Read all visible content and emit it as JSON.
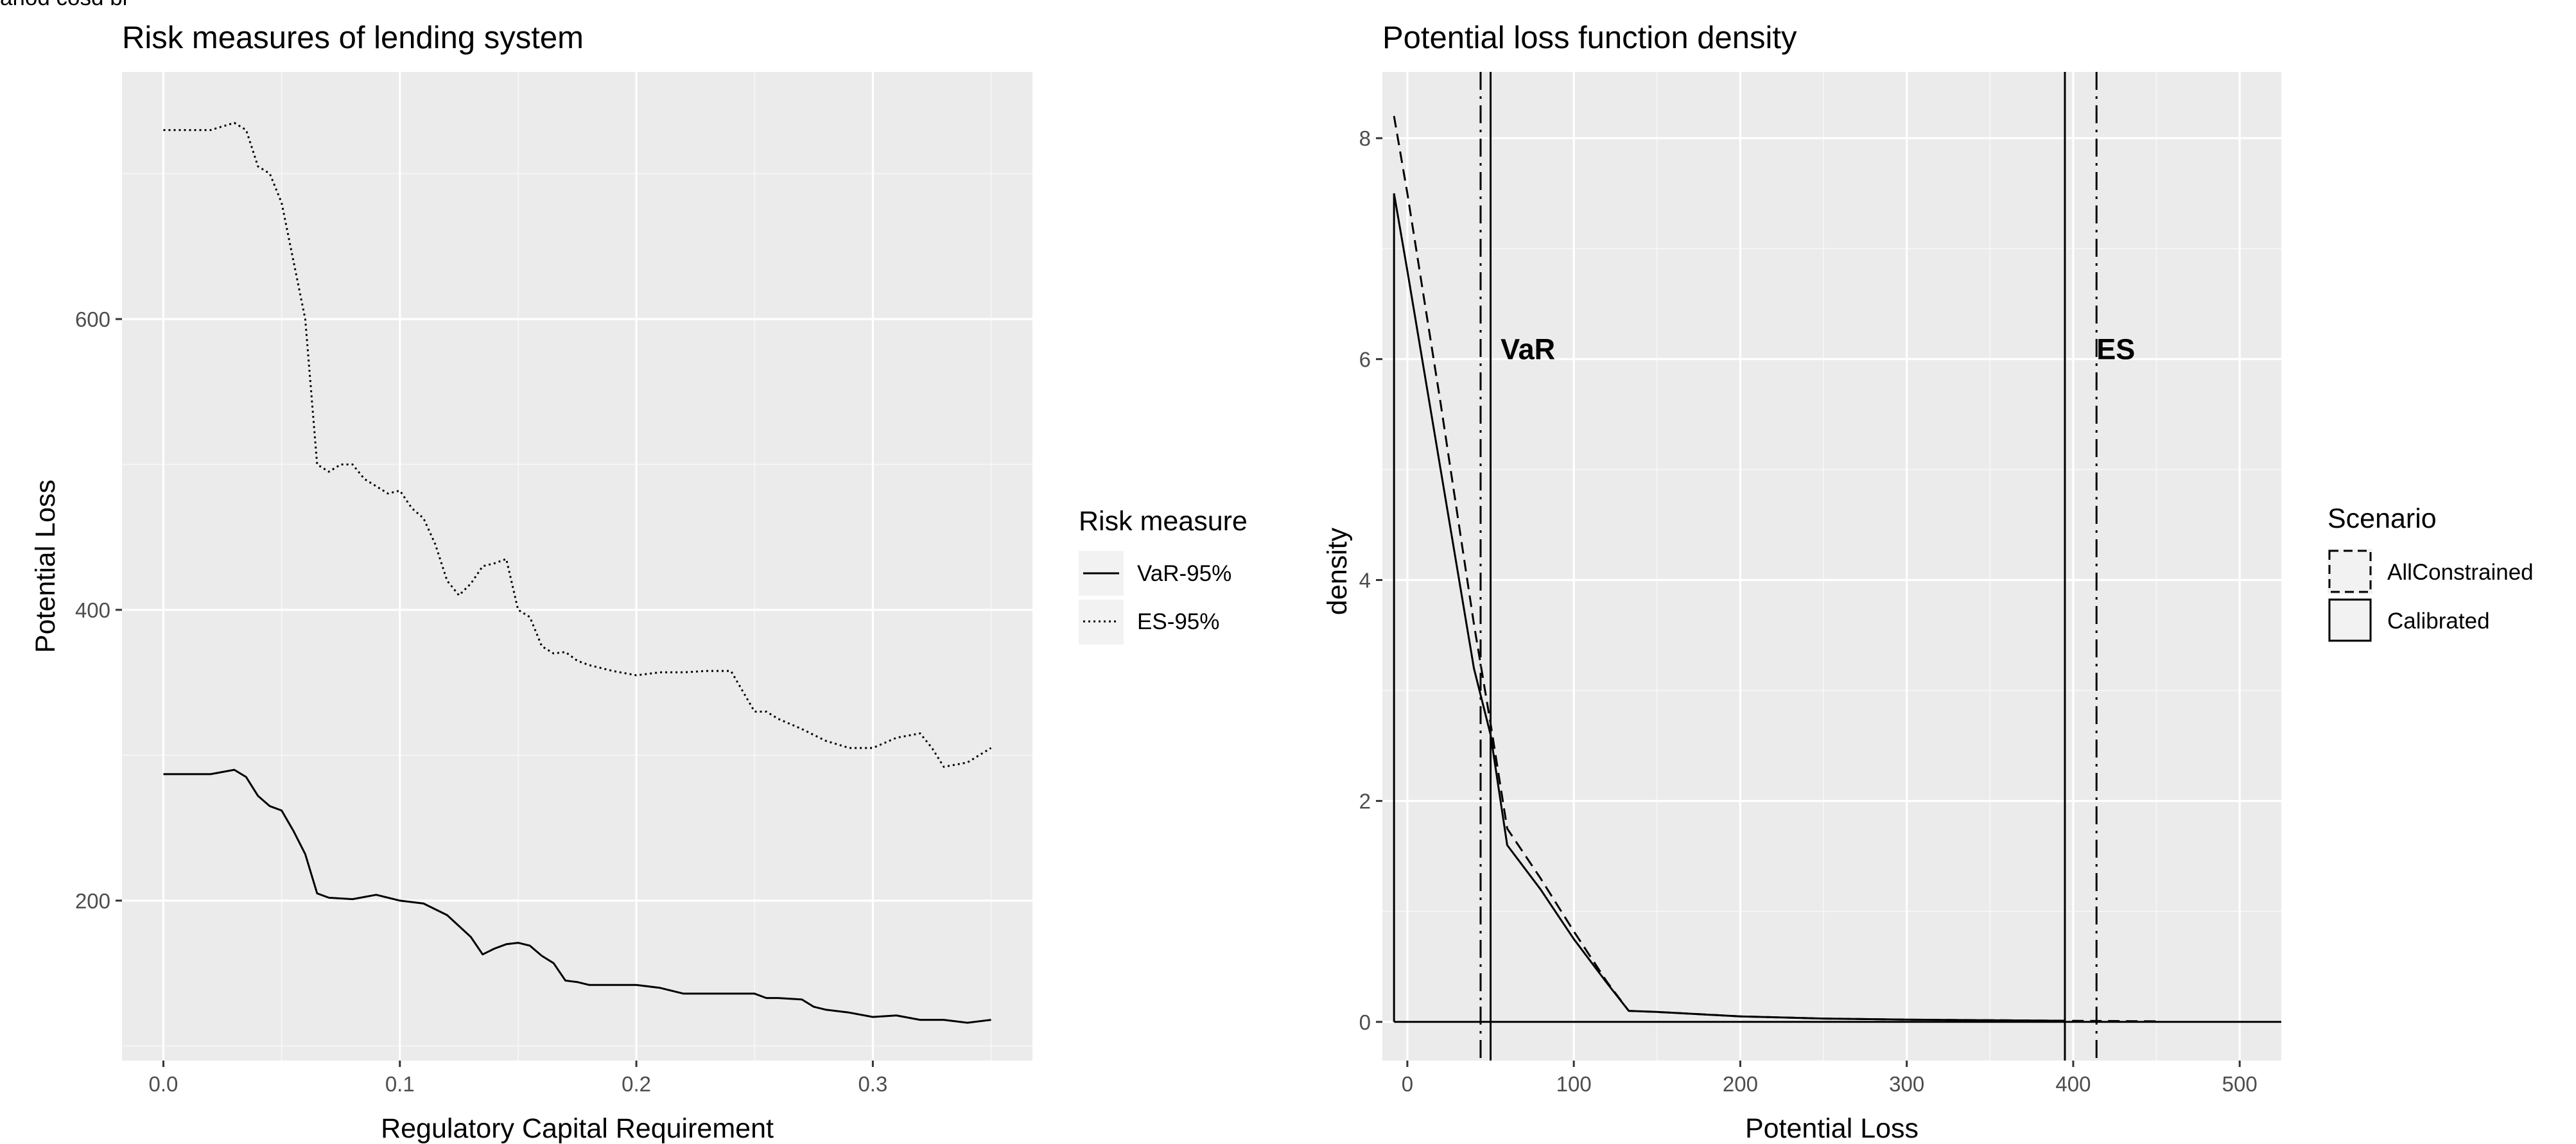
{
  "header": {
    "clipped_text": "ariod cosd bi"
  },
  "chart_data": [
    {
      "type": "line",
      "title": "Risk measures of lending system",
      "xlabel": "Regulatory Capital Requirement",
      "ylabel": "Potential Loss",
      "xlim": [
        -0.0175,
        0.3675
      ],
      "ylim": [
        90,
        770
      ],
      "xticks": [
        0.0,
        0.1,
        0.2,
        0.3
      ],
      "xtick_labels": [
        "0.0",
        "0.1",
        "0.2",
        "0.3"
      ],
      "yticks": [
        200,
        400,
        600
      ],
      "ytick_labels": [
        "200",
        "400",
        "600"
      ],
      "grid": true,
      "legend": {
        "title": "Risk measure",
        "placement": "right"
      },
      "series": [
        {
          "name": "VaR-95%",
          "linestyle": "solid",
          "x": [
            0.0,
            0.02,
            0.03,
            0.035,
            0.04,
            0.045,
            0.05,
            0.055,
            0.06,
            0.065,
            0.07,
            0.08,
            0.09,
            0.1,
            0.11,
            0.12,
            0.13,
            0.135,
            0.14,
            0.145,
            0.15,
            0.155,
            0.16,
            0.165,
            0.17,
            0.175,
            0.18,
            0.19,
            0.2,
            0.21,
            0.22,
            0.23,
            0.24,
            0.25,
            0.255,
            0.26,
            0.27,
            0.275,
            0.28,
            0.29,
            0.3,
            0.31,
            0.32,
            0.33,
            0.34,
            0.35
          ],
          "values": [
            287,
            287,
            290,
            285,
            272,
            265,
            262,
            248,
            232,
            205,
            202,
            201,
            204,
            200,
            198,
            190,
            175,
            163,
            167,
            170,
            171,
            169,
            162,
            157,
            145,
            144,
            142,
            142,
            142,
            140,
            136,
            136,
            136,
            136,
            133,
            133,
            132,
            127,
            125,
            123,
            120,
            121,
            118,
            118,
            116,
            118
          ]
        },
        {
          "name": "ES-95%",
          "linestyle": "dotted",
          "x": [
            0.0,
            0.01,
            0.02,
            0.03,
            0.035,
            0.04,
            0.045,
            0.05,
            0.055,
            0.06,
            0.065,
            0.07,
            0.075,
            0.08,
            0.085,
            0.09,
            0.095,
            0.1,
            0.105,
            0.11,
            0.115,
            0.12,
            0.125,
            0.13,
            0.135,
            0.14,
            0.145,
            0.15,
            0.155,
            0.16,
            0.165,
            0.17,
            0.175,
            0.18,
            0.185,
            0.19,
            0.2,
            0.21,
            0.22,
            0.23,
            0.24,
            0.25,
            0.255,
            0.26,
            0.27,
            0.28,
            0.29,
            0.3,
            0.31,
            0.32,
            0.325,
            0.33,
            0.34,
            0.35
          ],
          "values": [
            730,
            730,
            730,
            735,
            730,
            705,
            700,
            680,
            640,
            600,
            500,
            495,
            500,
            500,
            490,
            485,
            480,
            482,
            470,
            463,
            445,
            420,
            410,
            418,
            430,
            432,
            435,
            400,
            395,
            375,
            370,
            371,
            365,
            362,
            360,
            358,
            355,
            357,
            357,
            358,
            358,
            330,
            330,
            325,
            318,
            310,
            305,
            305,
            312,
            315,
            305,
            292,
            295,
            305
          ]
        }
      ]
    },
    {
      "type": "line",
      "title": "Potential loss function density",
      "xlabel": "Potential Loss",
      "ylabel": "density",
      "xlim": [
        -15,
        525
      ],
      "ylim": [
        -0.35,
        8.6
      ],
      "xticks": [
        0,
        100,
        200,
        300,
        400,
        500
      ],
      "xtick_labels": [
        "0",
        "100",
        "200",
        "300",
        "400",
        "500"
      ],
      "yticks": [
        0,
        2,
        4,
        6,
        8
      ],
      "ytick_labels": [
        "0",
        "2",
        "4",
        "6",
        "8"
      ],
      "grid": true,
      "legend": {
        "title": "Scenario",
        "placement": "right"
      },
      "series": [
        {
          "name": "AllConstrained",
          "linestyle": "dashed",
          "x": [
            -8,
            0,
            20,
            40,
            50,
            60,
            80,
            100,
            120,
            133,
            150,
            200,
            250,
            300,
            350,
            400,
            450
          ],
          "values": [
            8.2,
            7.5,
            5.6,
            3.6,
            2.7,
            1.75,
            1.3,
            0.82,
            0.36,
            0.1,
            0.09,
            0.05,
            0.03,
            0.02,
            0.015,
            0.01,
            0.005
          ]
        },
        {
          "name": "Calibrated",
          "linestyle": "solid",
          "x": [
            -8,
            0,
            20,
            40,
            50,
            60,
            80,
            100,
            120,
            133,
            150,
            200,
            250,
            300,
            350,
            395
          ],
          "values": [
            7.5,
            6.8,
            5.0,
            3.2,
            2.6,
            1.6,
            1.2,
            0.75,
            0.35,
            0.1,
            0.09,
            0.05,
            0.03,
            0.02,
            0.015,
            0.01
          ]
        }
      ],
      "vlines": [
        {
          "x": 44,
          "linestyle": "dashdot"
        },
        {
          "x": 50,
          "linestyle": "solid"
        },
        {
          "x": 395,
          "linestyle": "solid"
        },
        {
          "x": 414,
          "linestyle": "dashdot"
        }
      ],
      "annotations": [
        {
          "text": "VaR",
          "x": 56,
          "y": 6.0
        },
        {
          "text": "ES",
          "x": 414,
          "y": 6.0
        }
      ]
    }
  ]
}
